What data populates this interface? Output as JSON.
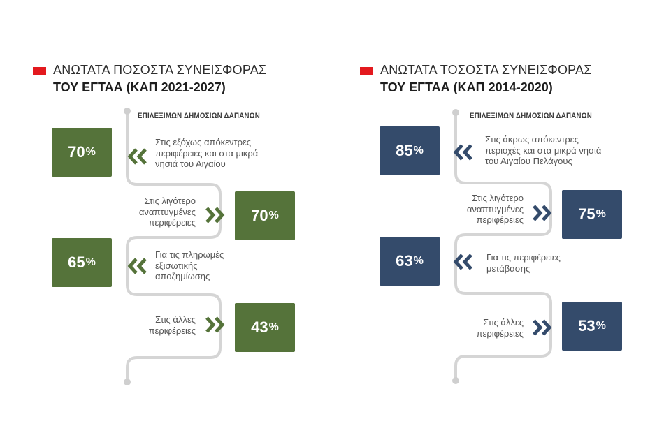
{
  "panels": [
    {
      "title_line1": "ΑΝΩΤΑΤΑ ΠΟΣΟΣΤΑ ΣΥΝΕΙΣΦΟΡΑΣ",
      "title_line2": "ΤΟΥ ΕΓΤΑΑ (ΚΑΠ 2021-2027)",
      "subtitle": "ΕΠΙΛΕΞΙΜΩΝ ΔΗΜΟΣΙΩΝ ΔΑΠΑΝΩΝ",
      "color": "#55733a",
      "items": [
        {
          "value": "70",
          "unit": "%",
          "lines": [
            "Στις εξόχως απόκεντρες",
            "περιφέρειες και στα μικρά",
            "νησιά του Αιγαίου"
          ]
        },
        {
          "value": "70",
          "unit": "%",
          "lines": [
            "Στις λιγότερο",
            "αναπτυγμένες",
            "περιφέρειες"
          ]
        },
        {
          "value": "65",
          "unit": "%",
          "lines": [
            "Για τις πληρωμές",
            "εξισωτικής",
            "αποζημίωσης"
          ]
        },
        {
          "value": "43",
          "unit": "%",
          "lines": [
            "Στις άλλες",
            "περιφέρειες"
          ]
        }
      ]
    },
    {
      "title_line1": "ΑΝΩΤΑΤΑ ΤΟΣΟΣΤΑ ΣΥΝΕΙΣΦΟΡΑΣ",
      "title_line2": "ΤΟΥ ΕΓΤΑΑ (ΚΑΠ 2014-2020)",
      "subtitle": "ΕΠΙΛΕΞΙΜΩΝ ΔΗΜΟΣΙΩΝ ΔΑΠΑΝΩΝ",
      "color": "#344b6b",
      "items": [
        {
          "value": "85",
          "unit": "%",
          "lines": [
            "Στις άκρως απόκεντρες",
            "περιοχές και στα μικρά νησιά",
            "του Αιγαίου Πελάγους"
          ]
        },
        {
          "value": "75",
          "unit": "%",
          "lines": [
            "Στις λιγότερο",
            "αναπτυγμένες",
            "περιφέρειες"
          ]
        },
        {
          "value": "63",
          "unit": "%",
          "lines": [
            "Για τις περιφέρειες",
            "μετάβασης"
          ]
        },
        {
          "value": "53",
          "unit": "%",
          "lines": [
            "Στις άλλες",
            "περιφέρειες"
          ]
        }
      ]
    }
  ]
}
